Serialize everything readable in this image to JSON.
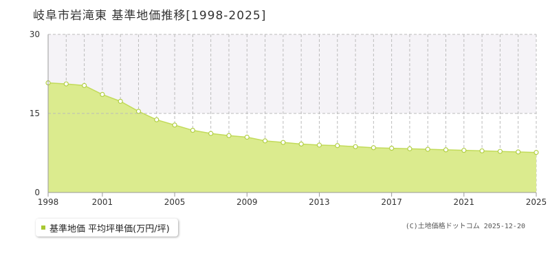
{
  "page": {
    "title": "岐阜市岩滝東  基準地価推移[1998-2025]"
  },
  "legend": {
    "label": "基準地価 平均坪単価(万円/坪)"
  },
  "copyright": "(C)土地価格ドットコム 2025-12-20",
  "colors": {
    "area_fill": "#dbeb8e",
    "line": "#c2db5a",
    "point_stroke": "#b2cf45",
    "point_fill": "#ffffff",
    "legend_swatch": "#a8c832",
    "grid": "#bbbbbb",
    "band": "#f5f3f7",
    "axis": "#999999",
    "tick_text": "#333333"
  },
  "chart_data": {
    "type": "area",
    "series": [
      {
        "name": "基準地価 平均坪単価(万円/坪)",
        "x": [
          1998,
          1999,
          2000,
          2001,
          2002,
          2003,
          2004,
          2005,
          2006,
          2007,
          2008,
          2009,
          2010,
          2011,
          2012,
          2013,
          2014,
          2015,
          2016,
          2017,
          2018,
          2019,
          2020,
          2021,
          2022,
          2023,
          2024,
          2025
        ],
        "values": [
          20.8,
          20.6,
          20.3,
          18.6,
          17.3,
          15.4,
          13.8,
          12.8,
          11.8,
          11.2,
          10.8,
          10.5,
          9.8,
          9.5,
          9.2,
          9.0,
          8.9,
          8.7,
          8.5,
          8.4,
          8.3,
          8.2,
          8.1,
          8.0,
          7.9,
          7.8,
          7.7,
          7.6
        ]
      }
    ],
    "xlim": [
      1998,
      2025
    ],
    "ylim": [
      0,
      30
    ],
    "xticks": [
      "1998",
      "2001",
      "2005",
      "2009",
      "2013",
      "2017",
      "2021",
      "2025"
    ],
    "yticks": [
      "0",
      "15",
      "30"
    ],
    "grid": true,
    "legend_position": "bottom-left"
  }
}
